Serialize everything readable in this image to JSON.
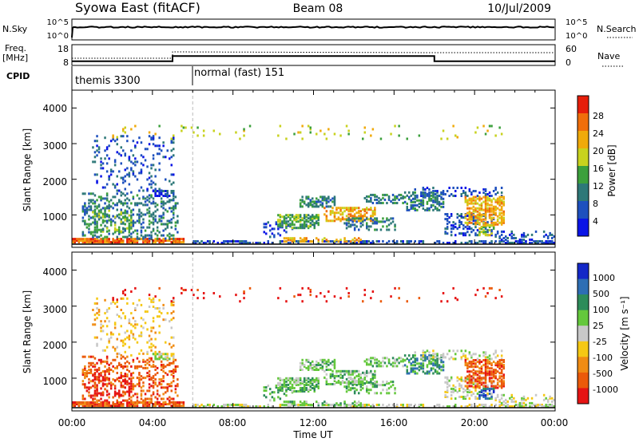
{
  "header": {
    "station": "Syowa East (fitACF)",
    "beam": "Beam 08",
    "date": "10/Jul/2009"
  },
  "nsky_panel": {
    "label_left": "N.Sky",
    "label_right": "N.Search",
    "ticks_left": [
      "10^5",
      "10^0"
    ],
    "ticks_right": [
      "10^5",
      "10^0"
    ]
  },
  "freq_panel": {
    "label_left_line1": "Freq.",
    "label_left_line2": "[MHz]",
    "ticks_left": [
      "18",
      "8"
    ],
    "ticks_right": [
      "60",
      "0"
    ],
    "label_right": "Nave"
  },
  "cpid": {
    "label": "CPID",
    "segments": [
      {
        "name": "themis 3300",
        "start_hour": 0,
        "end_hour": 6
      },
      {
        "name": "normal (fast) 151",
        "start_hour": 6,
        "end_hour": 24
      }
    ]
  },
  "power_panel": {
    "ylabel": "Slant Range [km]",
    "yticks": [
      "4000",
      "3000",
      "2000",
      "1000"
    ],
    "colorbar_label": "Power [dB]",
    "colorbar_ticks": [
      "28",
      "24",
      "20",
      "16",
      "12",
      "8",
      "4"
    ],
    "colors": [
      "#0a14e6",
      "#1e50be",
      "#2d7878",
      "#3ca03c",
      "#c8d21e",
      "#f0aa0a",
      "#f06e0a",
      "#e61e0a"
    ]
  },
  "velocity_panel": {
    "ylabel": "Slant Range [km]",
    "yticks": [
      "4000",
      "3000",
      "2000",
      "1000"
    ],
    "colorbar_label": "Velocity [m s⁻¹]",
    "colorbar_ticks": [
      "1000",
      "500",
      "100",
      "25",
      "-25",
      "-100",
      "-500",
      "-1000"
    ],
    "colors": [
      "#1428c8",
      "#2d6eb4",
      "#2d8c5a",
      "#64c83c",
      "#c8c8c8",
      "#f5c814",
      "#f08c14",
      "#eb5a0a",
      "#e61414"
    ]
  },
  "xaxis": {
    "label": "Time UT",
    "ticks": [
      "00:00",
      "04:00",
      "08:00",
      "12:00",
      "16:00",
      "20:00",
      "00:00"
    ]
  },
  "chart_data": {
    "type": "heatmap",
    "x_range_hours": [
      0,
      24
    ],
    "y_range_km": [
      180,
      4500
    ],
    "frequency_mhz": [
      {
        "start_hour": 0,
        "end_hour": 5,
        "value": 10
      },
      {
        "start_hour": 5,
        "end_hour": 18,
        "value": 12.5
      },
      {
        "start_hour": 18,
        "end_hour": 24,
        "value": 10
      }
    ],
    "echo_regions": [
      {
        "t0": 0.0,
        "t1": 5.5,
        "r0": 200,
        "r1": 320,
        "power_level": 6,
        "velocity_level": 7,
        "density": 0.85
      },
      {
        "t0": 0.5,
        "t1": 5.2,
        "r0": 300,
        "r1": 1600,
        "power_level": 2,
        "velocity_level": 7,
        "density": 0.25
      },
      {
        "t0": 1.0,
        "t1": 3.0,
        "r0": 500,
        "r1": 1100,
        "power_level": 3,
        "velocity_level": 8,
        "density": 0.35
      },
      {
        "t0": 1.0,
        "t1": 5.0,
        "r0": 1600,
        "r1": 3200,
        "power_level": 1,
        "velocity_level": 5,
        "density": 0.12
      },
      {
        "t0": 4.0,
        "t1": 5.0,
        "r0": 1500,
        "r1": 1650,
        "power_level": 1,
        "velocity_level": 4,
        "density": 0.7
      },
      {
        "t0": 6.0,
        "t1": 24.0,
        "r0": 180,
        "r1": 260,
        "power_level": 1,
        "velocity_level": 4,
        "density": 0.45
      },
      {
        "t0": 10.5,
        "t1": 14.5,
        "r0": 220,
        "r1": 320,
        "power_level": 5,
        "velocity_level": 3,
        "density": 0.35
      },
      {
        "t0": 9.5,
        "t1": 11.0,
        "r0": 350,
        "r1": 800,
        "power_level": 1,
        "velocity_level": 3,
        "density": 0.2
      },
      {
        "t0": 10.2,
        "t1": 12.2,
        "r0": 600,
        "r1": 1000,
        "power_level": 3,
        "velocity_level": 3,
        "density": 0.6
      },
      {
        "t0": 11.3,
        "t1": 13.0,
        "r0": 1200,
        "r1": 1500,
        "power_level": 2,
        "velocity_level": 3,
        "density": 0.55
      },
      {
        "t0": 12.5,
        "t1": 15.0,
        "r0": 800,
        "r1": 1200,
        "power_level": 5,
        "velocity_level": 3,
        "density": 0.55
      },
      {
        "t0": 13.5,
        "t1": 16.0,
        "r0": 550,
        "r1": 900,
        "power_level": 2,
        "velocity_level": 3,
        "density": 0.4
      },
      {
        "t0": 14.5,
        "t1": 16.5,
        "r0": 1300,
        "r1": 1550,
        "power_level": 2,
        "velocity_level": 3,
        "density": 0.45
      },
      {
        "t0": 16.5,
        "t1": 18.5,
        "r0": 1100,
        "r1": 1600,
        "power_level": 2,
        "velocity_level": 2,
        "density": 0.45
      },
      {
        "t0": 17.0,
        "t1": 21.5,
        "r0": 1500,
        "r1": 1750,
        "power_level": 1,
        "velocity_level": 4,
        "density": 0.25
      },
      {
        "t0": 18.5,
        "t1": 21.0,
        "r0": 400,
        "r1": 1000,
        "power_level": 1,
        "velocity_level": 4,
        "density": 0.35
      },
      {
        "t0": 19.5,
        "t1": 21.5,
        "r0": 700,
        "r1": 1500,
        "power_level": 5,
        "velocity_level": 7,
        "density": 0.55
      },
      {
        "t0": 20.2,
        "t1": 21.0,
        "r0": 400,
        "r1": 700,
        "power_level": 4,
        "velocity_level": 1,
        "density": 0.45
      },
      {
        "t0": 21.0,
        "t1": 24.0,
        "r0": 180,
        "r1": 500,
        "power_level": 1,
        "velocity_level": 4,
        "density": 0.25
      },
      {
        "t0": 2.0,
        "t1": 21.5,
        "r0": 3100,
        "r1": 3500,
        "power_level": 4,
        "velocity_level": 8,
        "density": 0.04
      }
    ]
  }
}
